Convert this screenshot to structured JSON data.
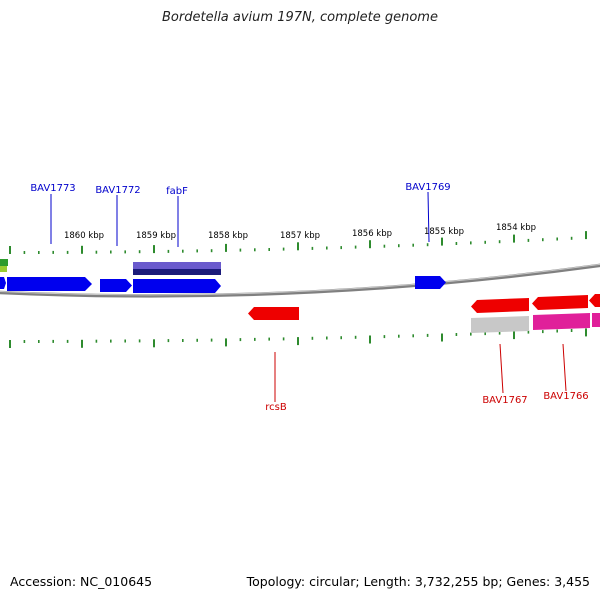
{
  "title": "Bordetella avium 197N, complete genome",
  "footer": {
    "accession": "Accession: NC_010645",
    "summary": "Topology: circular; Length: 3,732,255 bp; Genes: 3,455"
  },
  "scale": {
    "ticks": [
      "1860 kbp",
      "1859 kbp",
      "1858 kbp",
      "1857 kbp",
      "1856 kbp",
      "1855 kbp",
      "1854 kbp"
    ]
  },
  "genes": {
    "forward_labels": [
      "BAV1773",
      "BAV1772",
      "fabF",
      "BAV1769"
    ],
    "reverse_labels": [
      "rcsB",
      "BAV1767",
      "BAV1766"
    ]
  },
  "colors": {
    "forward_gene": "#0000ee",
    "reverse_gene": "#ee0000",
    "forward_label": "#0000cc",
    "reverse_label": "#cc0000",
    "backbone": "#808080",
    "tick": "#2e8b2e",
    "fabF_feature": "#6a5acd",
    "fabF_feature_dark": "#1a1a7a",
    "gray_feature": "#c8c8c8",
    "pink_feature": "#e0209a",
    "green_feature": "#2e9c2e"
  }
}
